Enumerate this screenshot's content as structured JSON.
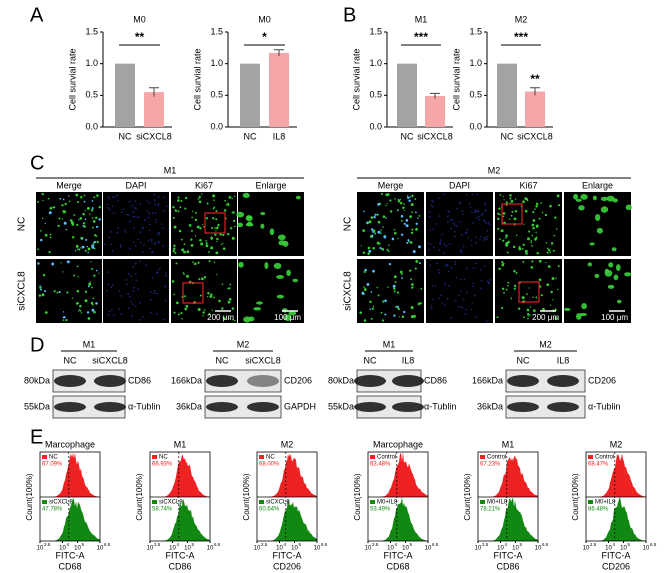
{
  "panel_labels": [
    "A",
    "B",
    "C",
    "D",
    "E"
  ],
  "bar_charts": [
    {
      "title": "M0",
      "ylabel": "Cell survial rate",
      "categories": [
        "NC",
        "siCXCL8"
      ],
      "values": [
        1.0,
        0.55
      ],
      "errors": [
        0,
        0.07
      ],
      "colors": [
        "#a3a3a3",
        "#f6a6a6"
      ],
      "ylim": [
        0,
        1.5
      ],
      "yticks": [
        {
          "value": 0,
          "label": "0.0"
        },
        {
          "value": 0.5,
          "label": "0.5"
        },
        {
          "value": 1,
          "label": "1.0"
        },
        {
          "value": 1.5,
          "label": "1.5"
        }
      ],
      "significance": "**"
    },
    {
      "title": "M0",
      "ylabel": "Cell survial rate",
      "categories": [
        "NC",
        "IL8"
      ],
      "values": [
        1.0,
        1.17
      ],
      "errors": [
        0,
        0.05
      ],
      "colors": [
        "#a3a3a3",
        "#f6a6a6"
      ],
      "ylim": [
        0,
        1.5
      ],
      "yticks": [
        {
          "value": 0,
          "label": "0.0"
        },
        {
          "value": 0.5,
          "label": "0.5"
        },
        {
          "value": 1,
          "label": "1.0"
        },
        {
          "value": 1.5,
          "label": "1.5"
        }
      ],
      "significance": "*"
    },
    {
      "title": "M1",
      "ylabel": "Cell survial rate",
      "categories": [
        "NC",
        "siCXCL8"
      ],
      "values": [
        1.0,
        0.49
      ],
      "errors": [
        0,
        0.04
      ],
      "colors": [
        "#a3a3a3",
        "#f6a6a6"
      ],
      "ylim": [
        0,
        1.5
      ],
      "yticks": [
        {
          "value": 0,
          "label": "0.0"
        },
        {
          "value": 0.5,
          "label": "0.5"
        },
        {
          "value": 1,
          "label": "1.0"
        },
        {
          "value": 1.5,
          "label": "1.5"
        }
      ],
      "significance": "***"
    },
    {
      "title": "M2",
      "ylabel": "Cell survial rate",
      "categories": [
        "NC",
        "siCXCL8"
      ],
      "values": [
        1.0,
        0.56
      ],
      "errors": [
        0,
        0.06
      ],
      "colors": [
        "#a3a3a3",
        "#f6a6a6"
      ],
      "ylim": [
        0,
        1.5
      ],
      "yticks": [
        {
          "value": 0,
          "label": "0.0"
        },
        {
          "value": 0.5,
          "label": "0.5"
        },
        {
          "value": 1,
          "label": "1.0"
        },
        {
          "value": 1.5,
          "label": "1.5"
        }
      ],
      "significance": "***",
      "second_bar_label": "**"
    }
  ],
  "microscopy": [
    {
      "group": "M1",
      "columns": [
        "Merge",
        "DAPI",
        "Ki67",
        "Enlarge"
      ],
      "rows": [
        "NC",
        "siCXCL8"
      ],
      "scale_bars": [
        "200 μm",
        "100 μm"
      ]
    },
    {
      "group": "M2",
      "columns": [
        "Merge",
        "DAPI",
        "Ki67",
        "Enlarge"
      ],
      "rows": [
        "NC",
        "siCXCL8"
      ],
      "scale_bars": [
        "200 μm",
        "100 μm"
      ]
    }
  ],
  "blots": [
    {
      "group": "M1",
      "lanes": [
        "NC",
        "siCXCL8"
      ],
      "rows": [
        {
          "kda": "80kDa",
          "protein": "CD86"
        },
        {
          "kda": "55kDa",
          "protein": "α-Tublin"
        }
      ]
    },
    {
      "group": "M2",
      "lanes": [
        "NC",
        "siCXCL8"
      ],
      "rows": [
        {
          "kda": "166kDa",
          "protein": "CD206"
        },
        {
          "kda": "36kDa",
          "protein": "GAPDH"
        }
      ]
    },
    {
      "group": "M1",
      "lanes": [
        "NC",
        "IL8"
      ],
      "rows": [
        {
          "kda": "80kDa",
          "protein": "CD86"
        },
        {
          "kda": "55kDa",
          "protein": "α-Tublin"
        }
      ]
    },
    {
      "group": "M2",
      "lanes": [
        "NC",
        "IL8"
      ],
      "rows": [
        {
          "kda": "166kDa",
          "protein": "CD206"
        },
        {
          "kda": "36kDa",
          "protein": "α-Tublin"
        }
      ]
    }
  ],
  "flow_ylabel": "Count(100%)",
  "flow_xlabel": "FITC-A",
  "flow_xtick_base": "10",
  "flow_xtick_exponents": [
    "2.5",
    "4",
    "5",
    "6.5"
  ],
  "flow": [
    {
      "title": "Marcophage",
      "top": {
        "label": "NC",
        "pct": "67.09%"
      },
      "bottom": {
        "label": "siCXCL8",
        "pct": "47.78%"
      },
      "marker": "CD68"
    },
    {
      "title": "M1",
      "top": {
        "label": "NC",
        "pct": "66.93%"
      },
      "bottom": {
        "label": "siCXCL8",
        "pct": "58.74%"
      },
      "marker": "CD86"
    },
    {
      "title": "M2",
      "top": {
        "label": "NC",
        "pct": "68.00%"
      },
      "bottom": {
        "label": "siCXCL8",
        "pct": "60.64%"
      },
      "marker": "CD206"
    },
    {
      "title": "Marcophage",
      "top": {
        "label": "Control",
        "pct": "63.48%"
      },
      "bottom": {
        "label": "M0+IL8",
        "pct": "53.49%"
      },
      "marker": "CD68"
    },
    {
      "title": "M1",
      "top": {
        "label": "Control",
        "pct": "67.23%"
      },
      "bottom": {
        "label": "M0+IL8",
        "pct": "78.21%"
      },
      "marker": "CD86"
    },
    {
      "title": "M2",
      "top": {
        "label": "Control",
        "pct": "68.47%"
      },
      "bottom": {
        "label": "M0+IL8",
        "pct": "86.48%"
      },
      "marker": "CD206"
    }
  ]
}
